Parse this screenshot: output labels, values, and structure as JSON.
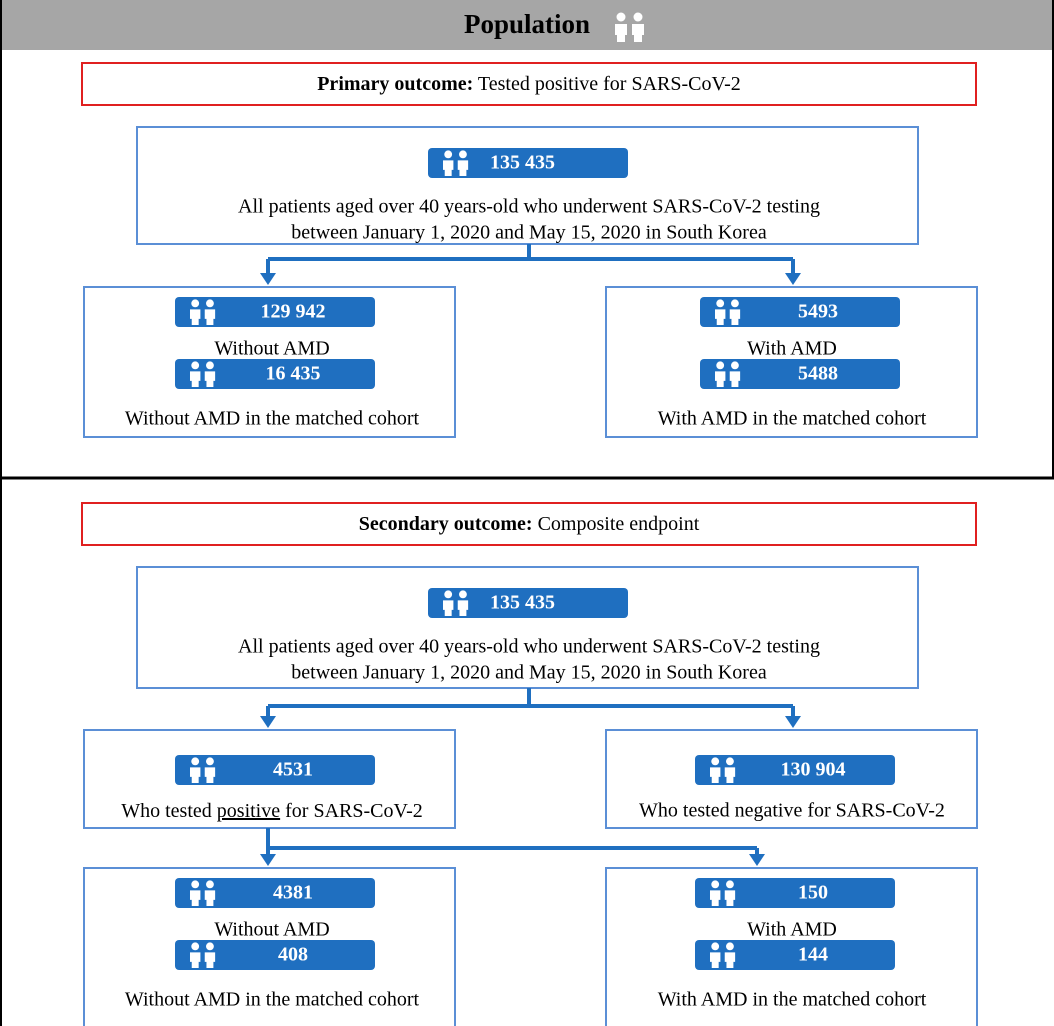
{
  "header": {
    "title": "Population"
  },
  "primary": {
    "outcome_label": "Primary outcome:",
    "outcome_text": "Tested positive for SARS-CoV-2",
    "root": {
      "count": "135 435",
      "lines": [
        "All patients aged over 40 years-old who underwent SARS-CoV-2 testing",
        "between January 1, 2020 and May 15, 2020 in South Korea"
      ]
    },
    "left": [
      {
        "count": "129 942",
        "label": "Without AMD"
      },
      {
        "count": "16 435",
        "label": "Without AMD in the matched cohort"
      }
    ],
    "right": [
      {
        "count": "5493",
        "label": "With AMD"
      },
      {
        "count": "5488",
        "label": "With AMD in the matched cohort"
      }
    ]
  },
  "secondary": {
    "outcome_label": "Secondary outcome:",
    "outcome_text": "Composite endpoint",
    "root": {
      "count": "135 435",
      "lines": [
        "All patients aged over 40 years-old who underwent SARS-CoV-2 testing",
        "between January 1, 2020 and May 15, 2020 in South Korea"
      ]
    },
    "positive": {
      "count": "4531",
      "label_parts": [
        "Who tested ",
        "positive",
        " for SARS-CoV-2"
      ]
    },
    "negative": {
      "count": "130 904",
      "label": "Who tested negative for SARS-CoV-2"
    },
    "left": [
      {
        "count": "4381",
        "label": "Without AMD"
      },
      {
        "count": "408",
        "label": "Without AMD in the matched cohort"
      }
    ],
    "right": [
      {
        "count": "150",
        "label": "With AMD"
      },
      {
        "count": "144",
        "label": "With AMD in the matched cohort"
      }
    ]
  }
}
